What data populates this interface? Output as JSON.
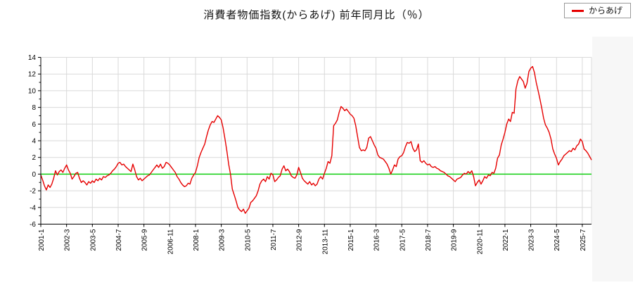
{
  "header": {
    "title": "消費者物価指数(からあげ) 前年同月比（％）"
  },
  "legend": {
    "label": "からあげ",
    "line_color": "#e60000"
  },
  "chart_data": {
    "type": "line",
    "title": "消費者物価指数(からあげ) 前年同月比（％）",
    "xlabel": "",
    "ylabel": "",
    "ylim": [
      -6,
      14
    ],
    "y_ticks": [
      -6,
      -4,
      -2,
      0,
      2,
      4,
      6,
      8,
      10,
      12,
      14
    ],
    "grid": true,
    "grid_color": "#d9d9d9",
    "axis_color": "#000000",
    "zero_line_color": "#00cc00",
    "legend_position": "top-right",
    "x_tick_interval_months": 14,
    "x_tick_labels": [
      "2001-1",
      "2002-3",
      "2003-5",
      "2004-7",
      "2005-9",
      "2006-11",
      "2008-1",
      "2009-3",
      "2010-5",
      "2011-7",
      "2012-9",
      "2013-11",
      "2015-1",
      "2016-3",
      "2017-5",
      "2018-7",
      "2019-9",
      "2020-11",
      "2022-1",
      "2023-3",
      "2024-5",
      "2025-7"
    ],
    "series": [
      {
        "name": "からあげ",
        "color": "#e60000",
        "start_month": "2001-1",
        "end_month": "2025-12",
        "frequency": "monthly",
        "values": [
          -0.1,
          -0.7,
          -1.4,
          -1.9,
          -1.3,
          -1.6,
          -1.2,
          -0.5,
          0.4,
          -0.1,
          0.3,
          0.5,
          0.2,
          0.7,
          1.1,
          0.5,
          0.1,
          -0.6,
          -0.3,
          0.1,
          0.2,
          -0.5,
          -1.0,
          -0.8,
          -1.0,
          -1.3,
          -0.9,
          -1.1,
          -0.8,
          -1.0,
          -0.6,
          -0.8,
          -0.5,
          -0.7,
          -0.3,
          -0.4,
          -0.2,
          -0.1,
          0.1,
          0.4,
          0.6,
          0.9,
          1.3,
          1.4,
          1.1,
          1.2,
          0.9,
          0.7,
          0.5,
          0.3,
          1.2,
          0.5,
          -0.3,
          -0.7,
          -0.5,
          -0.8,
          -0.6,
          -0.4,
          -0.2,
          -0.1,
          0.2,
          0.5,
          0.8,
          1.1,
          0.8,
          1.2,
          0.7,
          0.9,
          1.4,
          1.3,
          1.1,
          0.8,
          0.5,
          0.2,
          -0.3,
          -0.6,
          -1.0,
          -1.3,
          -1.5,
          -1.4,
          -1.1,
          -1.2,
          -0.5,
          -0.1,
          0.2,
          1.0,
          2.0,
          2.6,
          3.1,
          3.6,
          4.5,
          5.3,
          5.9,
          6.3,
          6.2,
          6.6,
          7.0,
          6.8,
          6.5,
          5.5,
          4.2,
          2.8,
          1.2,
          0.0,
          -1.8,
          -2.5,
          -3.2,
          -4.0,
          -4.3,
          -4.5,
          -4.2,
          -4.7,
          -4.4,
          -4.1,
          -3.4,
          -3.2,
          -2.9,
          -2.6,
          -2.0,
          -1.2,
          -0.8,
          -0.6,
          -0.9,
          -0.3,
          -0.6,
          0.1,
          -0.1,
          -0.9,
          -0.7,
          -0.4,
          -0.2,
          0.6,
          1.0,
          0.4,
          0.6,
          0.3,
          -0.2,
          -0.4,
          -0.5,
          -0.1,
          0.8,
          0.2,
          -0.5,
          -0.8,
          -1.0,
          -1.2,
          -0.9,
          -1.3,
          -1.1,
          -1.4,
          -1.2,
          -0.6,
          -0.3,
          -0.6,
          0.1,
          0.7,
          1.5,
          1.3,
          2.2,
          5.8,
          6.1,
          6.5,
          7.4,
          8.1,
          7.9,
          7.6,
          7.8,
          7.5,
          7.2,
          7.0,
          6.7,
          5.8,
          4.5,
          3.2,
          2.8,
          2.9,
          2.8,
          3.2,
          4.3,
          4.5,
          4.0,
          3.5,
          3.1,
          2.3,
          2.0,
          1.9,
          1.8,
          1.5,
          1.2,
          0.7,
          0.0,
          0.5,
          1.1,
          0.9,
          1.8,
          2.1,
          2.2,
          2.6,
          3.3,
          3.8,
          3.7,
          3.9,
          3.1,
          2.7,
          2.9,
          3.6,
          1.6,
          1.4,
          1.6,
          1.3,
          1.1,
          1.2,
          0.9,
          0.8,
          0.9,
          0.7,
          0.6,
          0.4,
          0.3,
          0.2,
          0.0,
          -0.2,
          -0.3,
          -0.5,
          -0.7,
          -0.9,
          -0.6,
          -0.5,
          -0.4,
          -0.1,
          0.1,
          0.0,
          0.3,
          0.1,
          0.4,
          -0.3,
          -1.4,
          -1.0,
          -0.7,
          -1.2,
          -0.8,
          -0.3,
          -0.5,
          -0.1,
          -0.2,
          0.2,
          0.1,
          0.7,
          1.9,
          2.3,
          3.5,
          4.2,
          5.0,
          6.0,
          6.6,
          6.3,
          7.4,
          7.3,
          10.2,
          11.2,
          11.7,
          11.4,
          11.1,
          10.3,
          10.9,
          12.3,
          12.7,
          12.9,
          12.2,
          11.0,
          10.0,
          9.0,
          7.9,
          6.7,
          5.9,
          5.5,
          5.0,
          4.2,
          3.0,
          2.4,
          1.9,
          1.1,
          1.5,
          1.8,
          2.2,
          2.4,
          2.6,
          2.8,
          2.7,
          3.1,
          2.9,
          3.4,
          3.6,
          4.2,
          3.9,
          3.0,
          2.8,
          2.5,
          2.1,
          1.7
        ]
      }
    ]
  }
}
